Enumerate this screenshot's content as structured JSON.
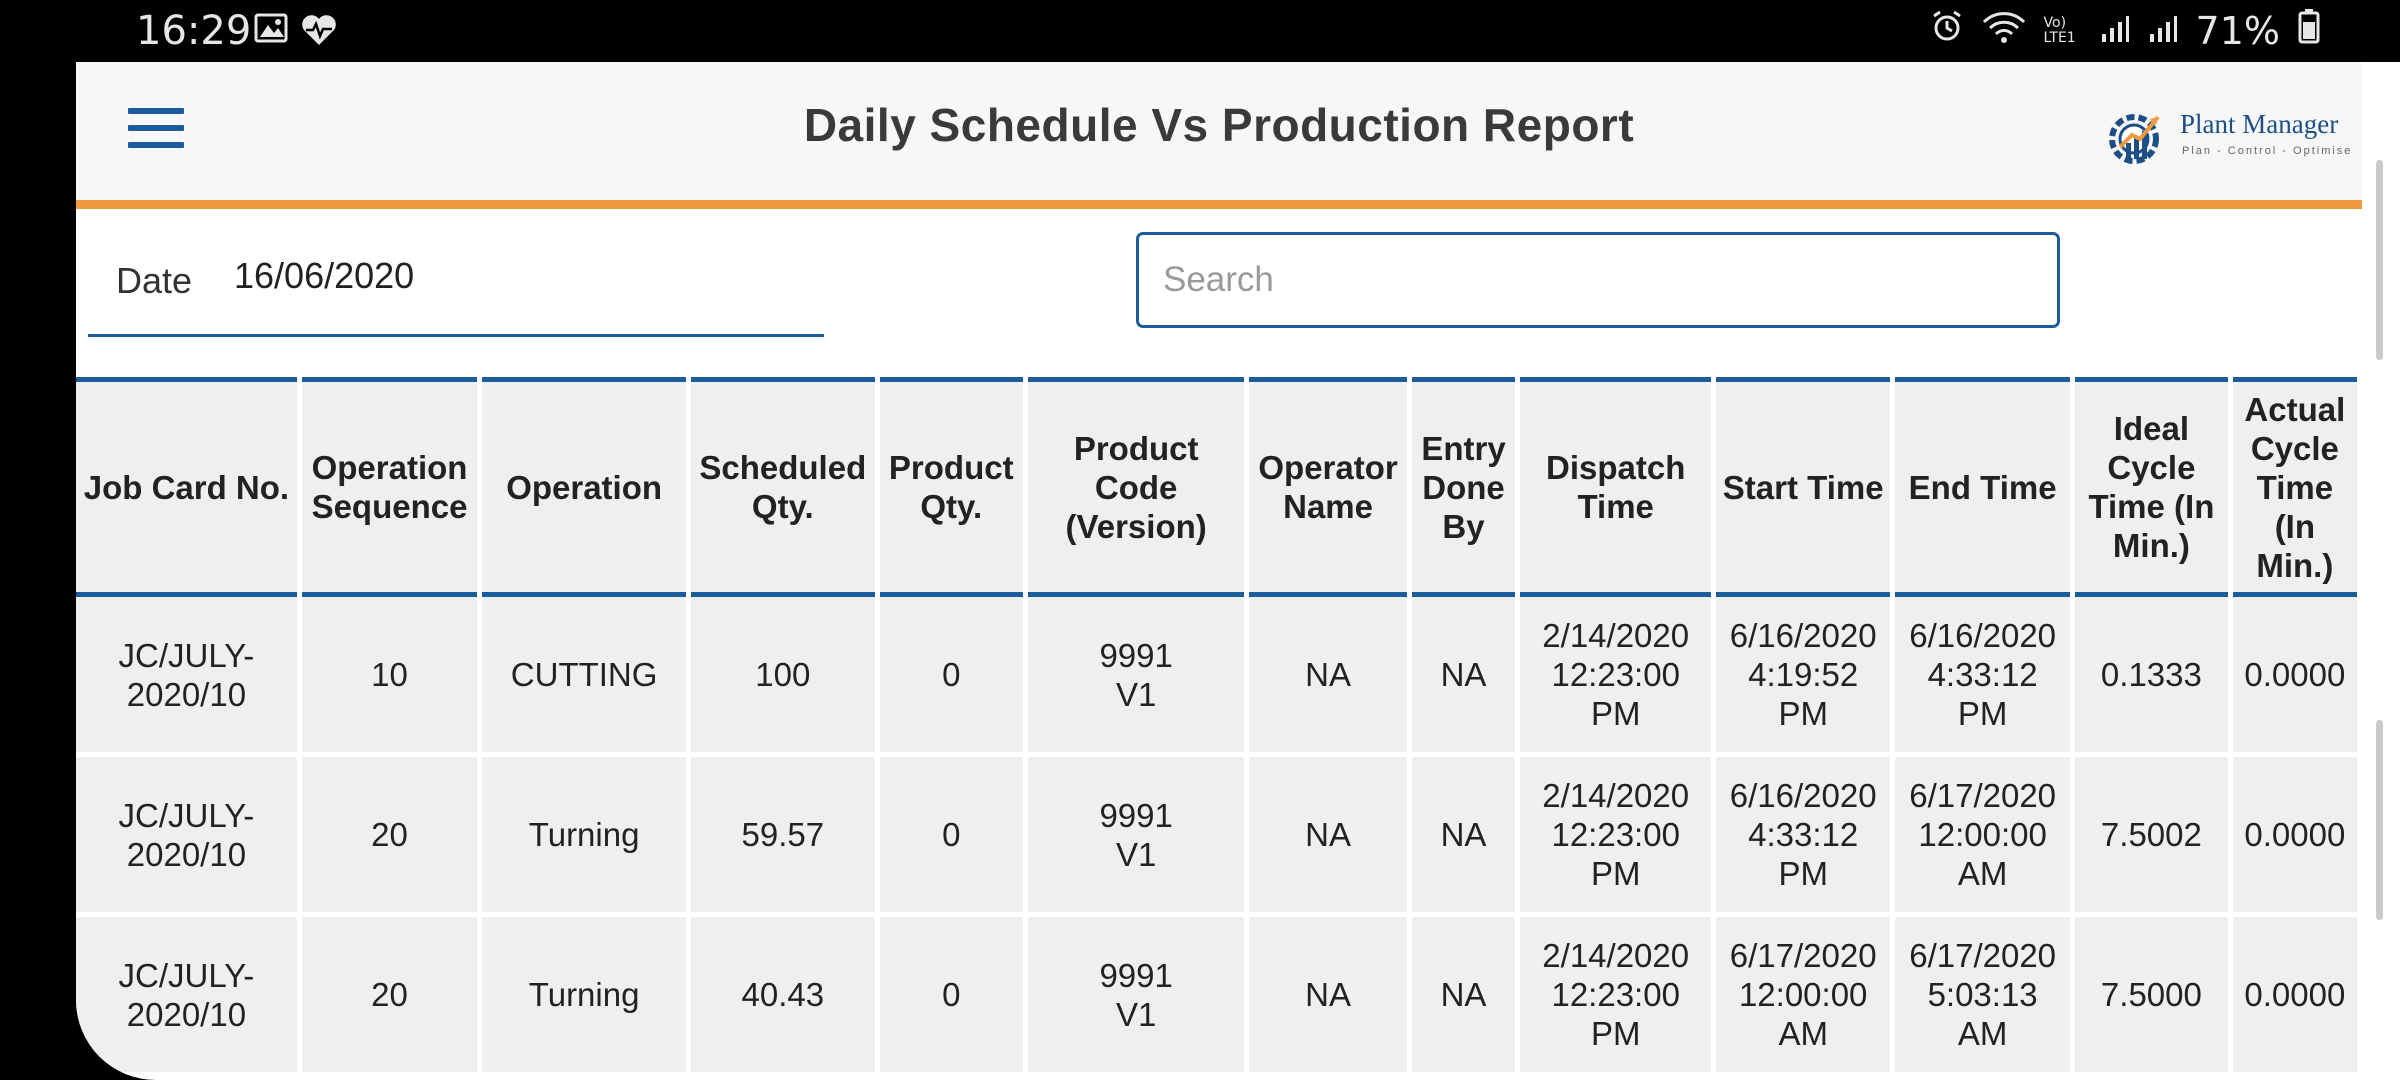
{
  "status_bar": {
    "time": "16:29",
    "battery": "71%",
    "network": "Vo) LTE1",
    "icons_left": [
      "image-icon",
      "heart-icon"
    ],
    "icons_right": [
      "alarm-icon",
      "wifi-icon",
      "signal-icon",
      "signal-icon",
      "battery-icon"
    ]
  },
  "header": {
    "title": "Daily Schedule Vs Production Report",
    "logo_name": "Plant Manager",
    "logo_tagline": "Plan - Control - Optimise"
  },
  "filters": {
    "date_label": "Date",
    "date_value": "16/06/2020",
    "search_placeholder": "Search"
  },
  "table": {
    "columns": [
      "Job Card No.",
      "Operation Sequence",
      "Operation",
      "Scheduled Qty.",
      "Product Qty.",
      "Product Code (Version)",
      "Operator Name",
      "Entry Done By",
      "Dispatch Time",
      "Start Time",
      "End Time",
      "Ideal Cycle Time (In Min.)",
      "Actual Cycle Time (In Min.)"
    ],
    "rows": [
      [
        "JC/JULY-\n2020/10",
        "10",
        "CUTTING",
        "100",
        "0",
        "9991\nV1",
        "NA",
        "NA",
        "2/14/2020\n12:23:00\nPM",
        "6/16/2020\n4:19:52\nPM",
        "6/16/2020\n4:33:12\nPM",
        "0.1333",
        "0.0000"
      ],
      [
        "JC/JULY-\n2020/10",
        "20",
        "Turning",
        "59.57",
        "0",
        "9991\nV1",
        "NA",
        "NA",
        "2/14/2020\n12:23:00\nPM",
        "6/16/2020\n4:33:12\nPM",
        "6/17/2020\n12:00:00\nAM",
        "7.5002",
        "0.0000"
      ],
      [
        "JC/JULY-\n2020/10",
        "20",
        "Turning",
        "40.43",
        "0",
        "9991\nV1",
        "NA",
        "NA",
        "2/14/2020\n12:23:00\nPM",
        "6/17/2020\n12:00:00\nAM",
        "6/17/2020\n5:03:13\nAM",
        "7.5000",
        "0.0000"
      ]
    ]
  },
  "colors": {
    "accent_blue": "#1c5c9c",
    "header_underline_orange": "#f0993e",
    "cell_bg": "#efefef"
  }
}
